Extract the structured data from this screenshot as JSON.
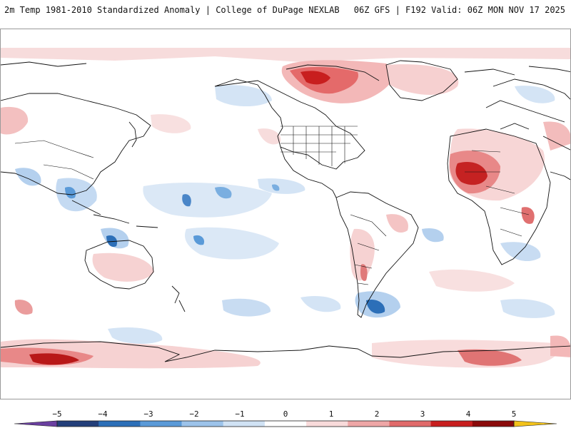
{
  "header": {
    "title": "2m Temp 1981-2010 Standardized Anomaly | College of DuPage NEXLAB",
    "run_info": "06Z GFS | F192 Valid: 06Z MON NOV 17 2025"
  },
  "colorbar": {
    "labels": [
      "−5",
      "−4",
      "−3",
      "−2",
      "−1",
      "0",
      "1",
      "2",
      "3",
      "4",
      "5"
    ],
    "colors": [
      "#6a3fa0",
      "#233f7a",
      "#2c6fb8",
      "#5a9ad8",
      "#9cc3ea",
      "#d0e2f4",
      "#ffffff",
      "#f8dada",
      "#eea6a6",
      "#e06a6a",
      "#c81e1e",
      "#8a0a0a",
      "#f2c21a"
    ]
  }
}
